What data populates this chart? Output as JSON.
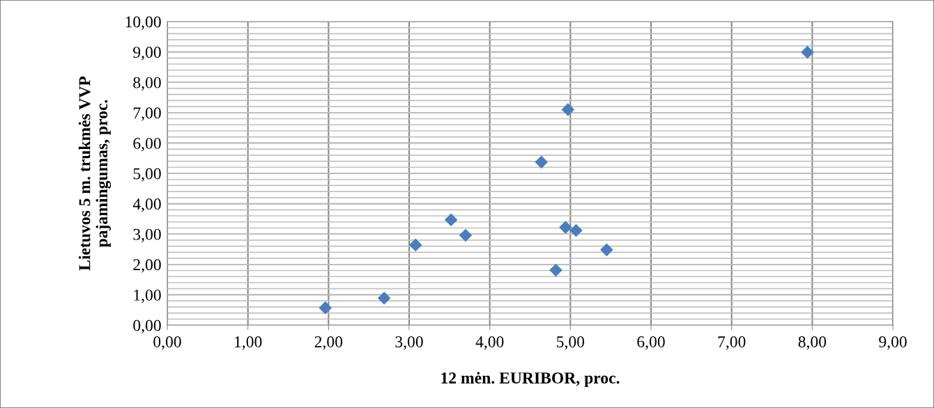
{
  "chart_data": {
    "type": "scatter",
    "xlabel": "12 mėn. EURIBOR, proc.",
    "ylabel": "Lietuvos 5 m. trukmės VVP\npajamingumas, proc.",
    "x": [
      1.96,
      2.69,
      3.08,
      3.52,
      3.7,
      4.64,
      4.82,
      4.97,
      4.94,
      5.07,
      5.45,
      7.94
    ],
    "values": [
      0.57,
      0.89,
      2.64,
      3.47,
      2.96,
      5.37,
      1.81,
      7.1,
      3.22,
      3.12,
      2.48,
      8.99
    ],
    "color": "#4a7ebb",
    "marker": "diamond",
    "grid": true,
    "xlim": [
      0,
      9
    ],
    "ylim": [
      0,
      10
    ],
    "xticks": [
      {
        "value": 0,
        "label": "0,00"
      },
      {
        "value": 1,
        "label": "1,00"
      },
      {
        "value": 2,
        "label": "2,00"
      },
      {
        "value": 3,
        "label": "3,00"
      },
      {
        "value": 4,
        "label": "4,00"
      },
      {
        "value": 5,
        "label": "5,00"
      },
      {
        "value": 6,
        "label": "6,00"
      },
      {
        "value": 7,
        "label": "7,00"
      },
      {
        "value": 8,
        "label": "8,00"
      },
      {
        "value": 9,
        "label": "9,00"
      }
    ],
    "yticks": [
      {
        "value": 0,
        "label": "0,00"
      },
      {
        "value": 1,
        "label": "1,00"
      },
      {
        "value": 2,
        "label": "2,00"
      },
      {
        "value": 3,
        "label": "3,00"
      },
      {
        "value": 4,
        "label": "4,00"
      },
      {
        "value": 5,
        "label": "5,00"
      },
      {
        "value": 6,
        "label": "6,00"
      },
      {
        "value": 7,
        "label": "7,00"
      },
      {
        "value": 8,
        "label": "8,00"
      },
      {
        "value": 9,
        "label": "9,00"
      },
      {
        "value": 10,
        "label": "10,00"
      }
    ]
  }
}
